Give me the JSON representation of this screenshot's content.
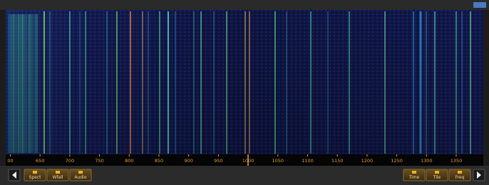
{
  "axis": {
    "labels": [
      "00",
      "650",
      "700",
      "750",
      "800",
      "850",
      "900",
      "950",
      "1000",
      "1050",
      "1100",
      "1150",
      "1200",
      "1250",
      "1300",
      "1350"
    ]
  },
  "buttons": {
    "left": [
      "Spect",
      "Wfall",
      "Audio"
    ],
    "right": [
      "Time",
      "Tile",
      "Freq"
    ]
  }
}
